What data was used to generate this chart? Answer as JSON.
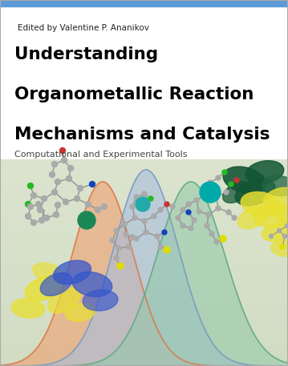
{
  "editor_text": "Edited by Valentine P. Ananikov",
  "title_line1": "Understanding",
  "title_line2": "Organometallic Reaction",
  "title_line3": "Mechanisms and Catalysis",
  "subtitle": "Computational and Experimental Tools",
  "bg_top": "#ffffff",
  "bg_bottom_top": "#d5e5cc",
  "bg_bottom_bot": "#cfe0c0",
  "top_stripe_color": "#5b9bd5",
  "border_color": "#bbbbbb",
  "editor_fontsize": 7.5,
  "title_fontsize": 15.5,
  "subtitle_fontsize": 8.0,
  "curve_orange": "#f0a070",
  "curve_blue": "#a8bede",
  "curve_green": "#90c8a8",
  "curve_orange_line": "#d87848",
  "curve_blue_line": "#7898be",
  "curve_green_line": "#60a880"
}
